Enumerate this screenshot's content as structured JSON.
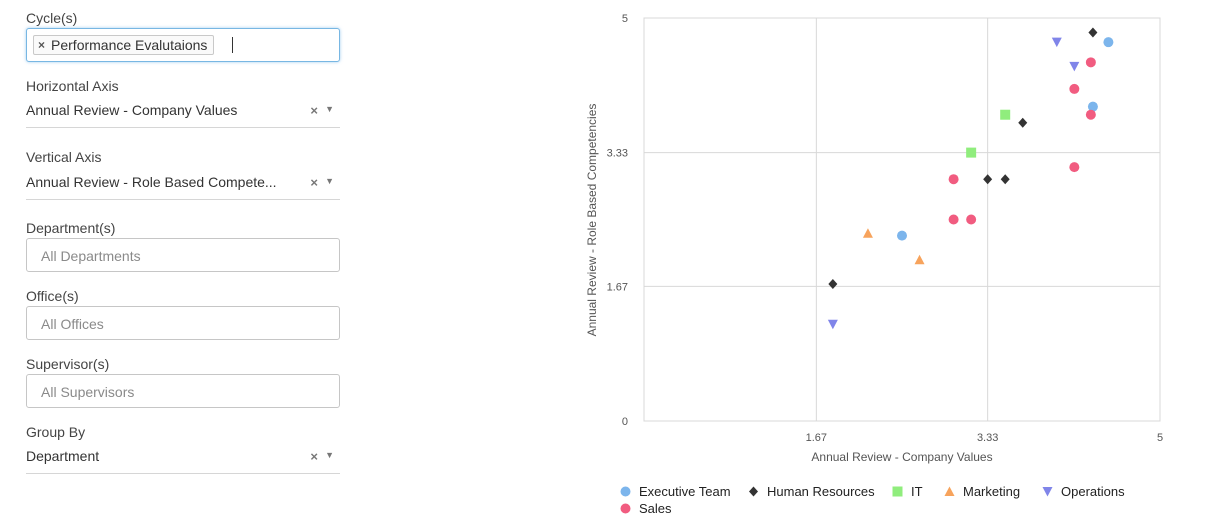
{
  "filters": {
    "cycles": {
      "label": "Cycle(s)",
      "tags": [
        "Performance Evalutaions"
      ],
      "remove_glyph": "×"
    },
    "horizontal_axis": {
      "label": "Horizontal Axis",
      "value": "Annual Review - Company Values",
      "clear_glyph": "×",
      "arrow_glyph": "▼"
    },
    "vertical_axis": {
      "label": "Vertical Axis",
      "value": "Annual Review - Role Based Compete...",
      "clear_glyph": "×",
      "arrow_glyph": "▼"
    },
    "departments": {
      "label": "Department(s)",
      "placeholder": "All Departments"
    },
    "offices": {
      "label": "Office(s)",
      "placeholder": "All Offices"
    },
    "supervisors": {
      "label": "Supervisor(s)",
      "placeholder": "All Supervisors"
    },
    "group_by": {
      "label": "Group By",
      "value": "Department",
      "clear_glyph": "×",
      "arrow_glyph": "▼"
    }
  },
  "chart_data": {
    "type": "scatter",
    "xlabel": "Annual Review - Company Values",
    "ylabel": "Annual Review - Role Based Competencies",
    "xlim": [
      0,
      5
    ],
    "ylim": [
      0,
      5
    ],
    "xticks": [
      "1.67",
      "3.33",
      "5"
    ],
    "yticks": [
      "0",
      "1.67",
      "3.33",
      "5"
    ],
    "grid": true,
    "legend_position": "bottom",
    "series": [
      {
        "name": "Executive Team",
        "marker": "circle",
        "color": "#7cb5ec",
        "points": [
          [
            2.5,
            2.3
          ],
          [
            4.35,
            3.9
          ],
          [
            4.5,
            4.7
          ]
        ]
      },
      {
        "name": "Human Resources",
        "marker": "diamond",
        "color": "#333333",
        "points": [
          [
            1.83,
            1.7
          ],
          [
            3.33,
            3.0
          ],
          [
            3.5,
            3.0
          ],
          [
            3.67,
            3.7
          ],
          [
            4.35,
            4.82
          ]
        ]
      },
      {
        "name": "IT",
        "marker": "square",
        "color": "#90ed7d",
        "points": [
          [
            3.17,
            3.33
          ],
          [
            3.5,
            3.8
          ]
        ]
      },
      {
        "name": "Marketing",
        "marker": "triangle",
        "color": "#f7a35c",
        "points": [
          [
            2.17,
            2.33
          ],
          [
            2.67,
            2.0
          ]
        ]
      },
      {
        "name": "Operations",
        "marker": "triangle-down",
        "color": "#8085e9",
        "points": [
          [
            1.83,
            1.2
          ],
          [
            4.0,
            4.7
          ],
          [
            4.17,
            4.4
          ]
        ]
      },
      {
        "name": "Sales",
        "marker": "circle",
        "color": "#f15c80",
        "points": [
          [
            3.0,
            3.0
          ],
          [
            3.0,
            2.5
          ],
          [
            3.17,
            2.5
          ],
          [
            4.17,
            3.15
          ],
          [
            4.17,
            4.12
          ],
          [
            4.33,
            3.8
          ],
          [
            4.33,
            4.45
          ]
        ]
      }
    ]
  }
}
